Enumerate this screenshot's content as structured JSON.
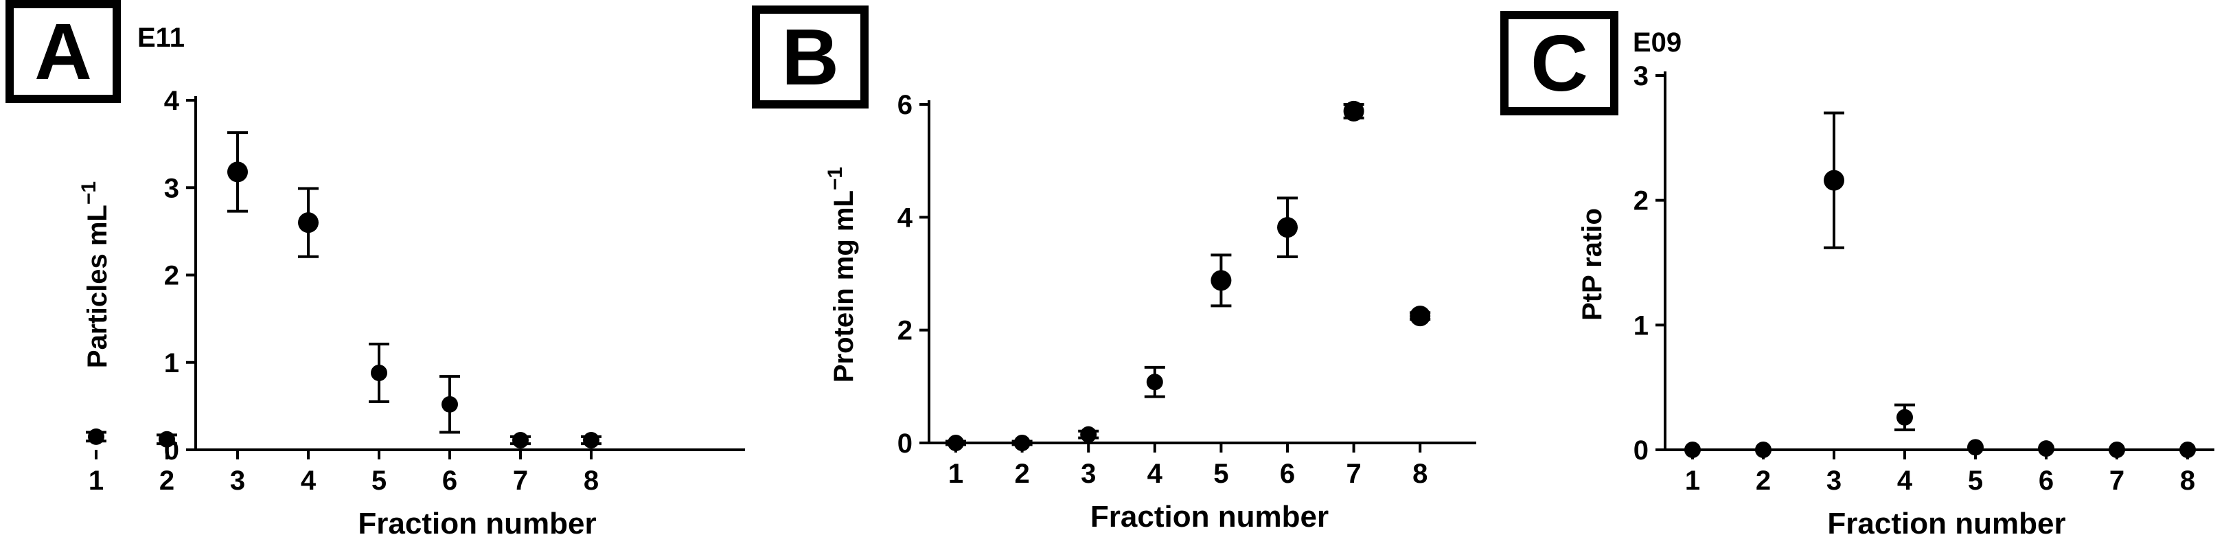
{
  "chart_data": [
    {
      "type": "scatter",
      "panel_label": "A",
      "exponent_label": "E11",
      "xlabel": "Fraction number",
      "ylabel": "Particles mL",
      "ylabel_superscript": "−1",
      "categories": [
        "1",
        "2",
        "3",
        "4",
        "5",
        "6",
        "7",
        "8"
      ],
      "ylim": [
        0,
        4
      ],
      "yticks": [
        "0",
        "1",
        "2",
        "3",
        "4"
      ],
      "grid": false,
      "series": [
        {
          "values": [
            0.15,
            0.12,
            3.18,
            2.6,
            0.88,
            0.52,
            0.11,
            0.11
          ],
          "error": [
            0.05,
            0.05,
            0.45,
            0.39,
            0.33,
            0.32,
            0.04,
            0.04
          ]
        }
      ]
    },
    {
      "type": "scatter",
      "panel_label": "B",
      "exponent_label": "",
      "xlabel": "Fraction number",
      "ylabel": "Protein mg mL",
      "ylabel_superscript": "−1",
      "categories": [
        "1",
        "2",
        "3",
        "4",
        "5",
        "6",
        "7",
        "8"
      ],
      "ylim": [
        0,
        6
      ],
      "yticks": [
        "0",
        "2",
        "4",
        "6"
      ],
      "grid": false,
      "series": [
        {
          "values": [
            0.0,
            0.0,
            0.15,
            1.08,
            2.88,
            3.82,
            5.88,
            2.25
          ],
          "error": [
            0.03,
            0.03,
            0.06,
            0.26,
            0.45,
            0.52,
            0.12,
            0.06
          ]
        }
      ]
    },
    {
      "type": "scatter",
      "panel_label": "C",
      "exponent_label": "E09",
      "xlabel": "Fraction number",
      "ylabel": "PtP ratio",
      "ylabel_superscript": "",
      "categories": [
        "1",
        "2",
        "3",
        "4",
        "5",
        "6",
        "7",
        "8"
      ],
      "ylim": [
        0,
        3
      ],
      "yticks": [
        "0",
        "1",
        "2",
        "3"
      ],
      "grid": false,
      "series": [
        {
          "values": [
            0.0,
            0.0,
            2.16,
            0.26,
            0.02,
            0.01,
            0.0,
            0.0
          ],
          "error": [
            0.0,
            0.0,
            0.54,
            0.1,
            0.01,
            0.0,
            0.0,
            0.0
          ]
        }
      ]
    }
  ]
}
